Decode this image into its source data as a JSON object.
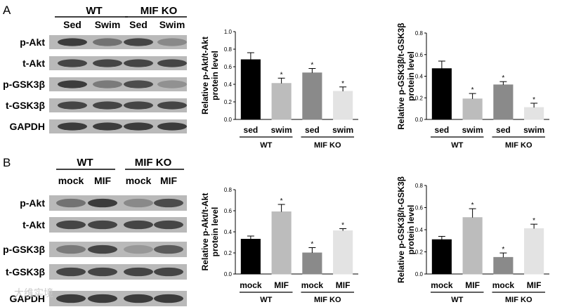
{
  "watermark": "大维实境",
  "panels": [
    {
      "letter": "A",
      "blot": {
        "groups": [
          "WT",
          "MIF KO"
        ],
        "lanes": [
          "Sed",
          "Swim",
          "Sed",
          "Swim"
        ],
        "rows": [
          "p-Akt",
          "t-Akt",
          "p-GSK3β",
          "t-GSK3β",
          "GAPDH"
        ]
      }
    },
    {
      "letter": "B",
      "blot": {
        "groups": [
          "WT",
          "MIF KO"
        ],
        "lanes": [
          "mock",
          "MIF",
          "mock",
          "MIF"
        ],
        "rows": [
          "p-Akt",
          "t-Akt",
          "p-GSK3β",
          "t-GSK3β",
          "GAPDH"
        ]
      }
    }
  ],
  "chart_data": [
    {
      "type": "bar",
      "panel": "A",
      "ylabel_line1": "Relative p-Akt/t-Akt",
      "ylabel_line2": "protein level",
      "ylim": [
        0,
        1.0
      ],
      "yticks": [
        0.0,
        0.2,
        0.4,
        0.6,
        0.8,
        1.0
      ],
      "categories": [
        "sed",
        "swim",
        "sed",
        "swim"
      ],
      "groups": [
        "WT",
        "MIF KO"
      ],
      "values": [
        0.68,
        0.41,
        0.53,
        0.32
      ],
      "errors": [
        0.08,
        0.06,
        0.05,
        0.05
      ],
      "significant": [
        false,
        true,
        true,
        true
      ],
      "colors": [
        "#000000",
        "#bcbcbc",
        "#8a8a8a",
        "#e3e3e3"
      ]
    },
    {
      "type": "bar",
      "panel": "A",
      "ylabel_line1": "Relative p-GSK3β/t-GSK3β",
      "ylabel_line2": "protein level",
      "ylim": [
        0,
        0.8
      ],
      "yticks": [
        0.0,
        0.2,
        0.4,
        0.6,
        0.8
      ],
      "categories": [
        "sed",
        "swim",
        "sed",
        "swim"
      ],
      "groups": [
        "WT",
        "MIF KO"
      ],
      "values": [
        0.47,
        0.19,
        0.32,
        0.11
      ],
      "errors": [
        0.07,
        0.05,
        0.03,
        0.04
      ],
      "significant": [
        false,
        true,
        true,
        true
      ],
      "colors": [
        "#000000",
        "#bcbcbc",
        "#8a8a8a",
        "#e3e3e3"
      ]
    },
    {
      "type": "bar",
      "panel": "B",
      "ylabel_line1": "Relative p-Akt/t-Akt",
      "ylabel_line2": "protein level",
      "ylim": [
        0,
        0.8
      ],
      "yticks": [
        0.0,
        0.2,
        0.4,
        0.6,
        0.8
      ],
      "categories": [
        "mock",
        "MIF",
        "mock",
        "MIF"
      ],
      "groups": [
        "WT",
        "MIF KO"
      ],
      "values": [
        0.33,
        0.59,
        0.2,
        0.41
      ],
      "errors": [
        0.03,
        0.07,
        0.05,
        0.02
      ],
      "significant": [
        false,
        true,
        true,
        true
      ],
      "colors": [
        "#000000",
        "#bcbcbc",
        "#8a8a8a",
        "#e3e3e3"
      ]
    },
    {
      "type": "bar",
      "panel": "B",
      "ylabel_line1": "Relative p-GSK3β/t-GSK3β",
      "ylabel_line2": "protein level",
      "ylim": [
        0,
        0.8
      ],
      "yticks": [
        0.0,
        0.2,
        0.4,
        0.6,
        0.8
      ],
      "categories": [
        "mock",
        "MIF",
        "mock",
        "MIF"
      ],
      "groups": [
        "WT",
        "MIF KO"
      ],
      "values": [
        0.31,
        0.51,
        0.15,
        0.41
      ],
      "errors": [
        0.03,
        0.08,
        0.04,
        0.04
      ],
      "significant": [
        false,
        true,
        true,
        true
      ],
      "colors": [
        "#000000",
        "#bcbcbc",
        "#8a8a8a",
        "#e3e3e3"
      ]
    }
  ]
}
